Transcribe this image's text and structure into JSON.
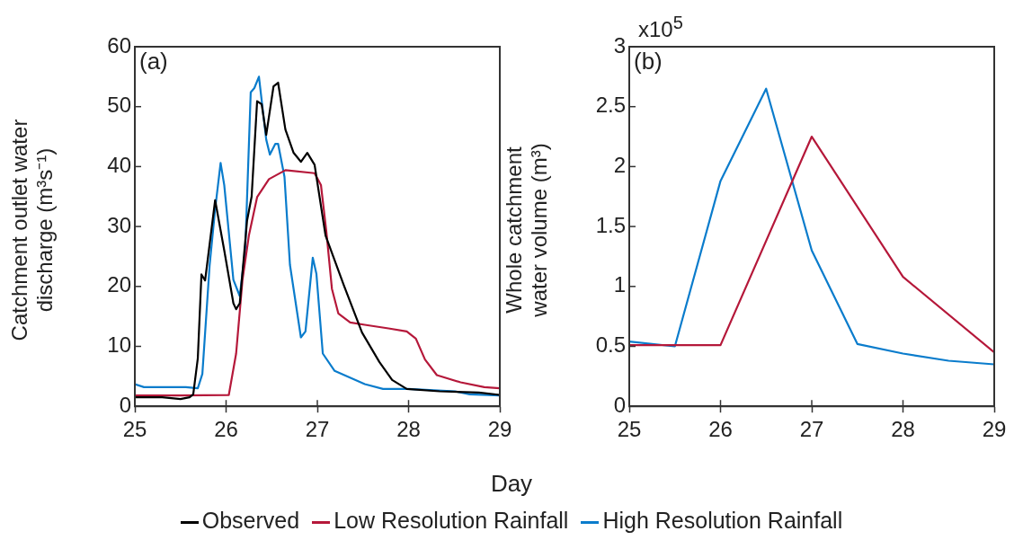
{
  "chart_data": [
    {
      "type": "line",
      "title": "(a)",
      "xlabel": "Day",
      "ylabel": "Catchment outlet water discharge (m³s⁻¹)",
      "xlim": [
        25,
        29
      ],
      "xticks": [
        25,
        26,
        27,
        28,
        29
      ],
      "ylim": [
        0,
        60
      ],
      "yticks": [
        0,
        10,
        20,
        30,
        40,
        50,
        60
      ],
      "legend": "bottom",
      "grid": false,
      "series": [
        {
          "name": "Observed",
          "color": "#000000",
          "x": [
            25,
            25.3,
            25.5,
            25.6,
            25.64,
            25.69,
            25.73,
            25.77,
            25.88,
            25.98,
            26.08,
            26.11,
            26.15,
            26.23,
            26.28,
            26.34,
            26.39,
            26.44,
            26.52,
            26.57,
            26.65,
            26.74,
            26.82,
            26.89,
            26.97,
            27.09,
            27.29,
            27.49,
            27.68,
            27.82,
            27.98,
            28.34,
            28.77,
            29
          ],
          "values": [
            1.5,
            1.5,
            1.2,
            1.5,
            2,
            8,
            22,
            21,
            34.4,
            26,
            17.2,
            16.2,
            17.2,
            31,
            35,
            50.9,
            50.4,
            45.3,
            53.4,
            54,
            46.2,
            42.3,
            40.8,
            42.3,
            40.3,
            28.5,
            20.2,
            12.3,
            7.4,
            4.4,
            2.9,
            2.5,
            2.3,
            1.9
          ]
        },
        {
          "name": "Low Resolution Rainfall",
          "color": "#b5183a",
          "x": [
            25,
            25.5,
            26.03,
            26.11,
            26.18,
            26.25,
            26.34,
            26.47,
            26.65,
            26.97,
            27.04,
            27.1,
            27.16,
            27.23,
            27.36,
            27.52,
            27.78,
            27.98,
            28.08,
            28.18,
            28.31,
            28.57,
            28.83,
            29
          ],
          "values": [
            1.8,
            1.8,
            1.9,
            8.8,
            21.1,
            28.5,
            34.9,
            37.9,
            39.4,
            38.9,
            36.9,
            29,
            19.6,
            15.5,
            14,
            13.6,
            13,
            12.5,
            11.3,
            7.8,
            5.2,
            4,
            3.2,
            3
          ]
        },
        {
          "name": "High Resolution Rainfall",
          "color": "#0a7ccc",
          "x": [
            25,
            25.1,
            25.56,
            25.69,
            25.74,
            25.82,
            25.88,
            25.94,
            25.98,
            26.08,
            26.15,
            26.21,
            26.27,
            26.31,
            26.36,
            26.44,
            26.48,
            26.54,
            26.57,
            26.64,
            26.7,
            26.82,
            26.87,
            26.95,
            26.99,
            27.06,
            27.19,
            27.52,
            27.72,
            28,
            28.51,
            28.67,
            29
          ],
          "values": [
            3.7,
            3.2,
            3.2,
            3,
            5.4,
            23.6,
            32.9,
            40.6,
            36.9,
            21.1,
            18.4,
            26.1,
            52.4,
            53.1,
            55,
            44.5,
            42,
            43.8,
            43.8,
            38.3,
            23.6,
            11.5,
            12.5,
            24.8,
            22.1,
            8.8,
            5.9,
            3.7,
            2.9,
            2.9,
            2.5,
            2,
            1.8
          ]
        }
      ]
    },
    {
      "type": "line",
      "title": "(b)",
      "ylabel": "Whole catchment water volume (m³)",
      "annotations": [
        "x10$^{5}$"
      ],
      "xlim": [
        25,
        29
      ],
      "xticks": [
        25,
        26,
        27,
        28,
        29
      ],
      "ylim": [
        0,
        3
      ],
      "yticks": [
        0,
        0.5,
        1,
        1.5,
        2,
        2.5,
        3
      ],
      "grid": false,
      "series": [
        {
          "color": "#b5183a",
          "x": [
            25,
            25.5,
            26,
            27,
            28,
            29
          ],
          "values": [
            0.51,
            0.51,
            0.51,
            2.25,
            1.08,
            0.45
          ]
        },
        {
          "color": "#0a7ccc",
          "x": [
            25,
            25.5,
            26,
            26.5,
            27,
            27.5,
            28,
            28.5,
            29
          ],
          "values": [
            0.54,
            0.5,
            1.88,
            2.65,
            1.3,
            0.52,
            0.44,
            0.38,
            0.35
          ]
        }
      ]
    }
  ]
}
